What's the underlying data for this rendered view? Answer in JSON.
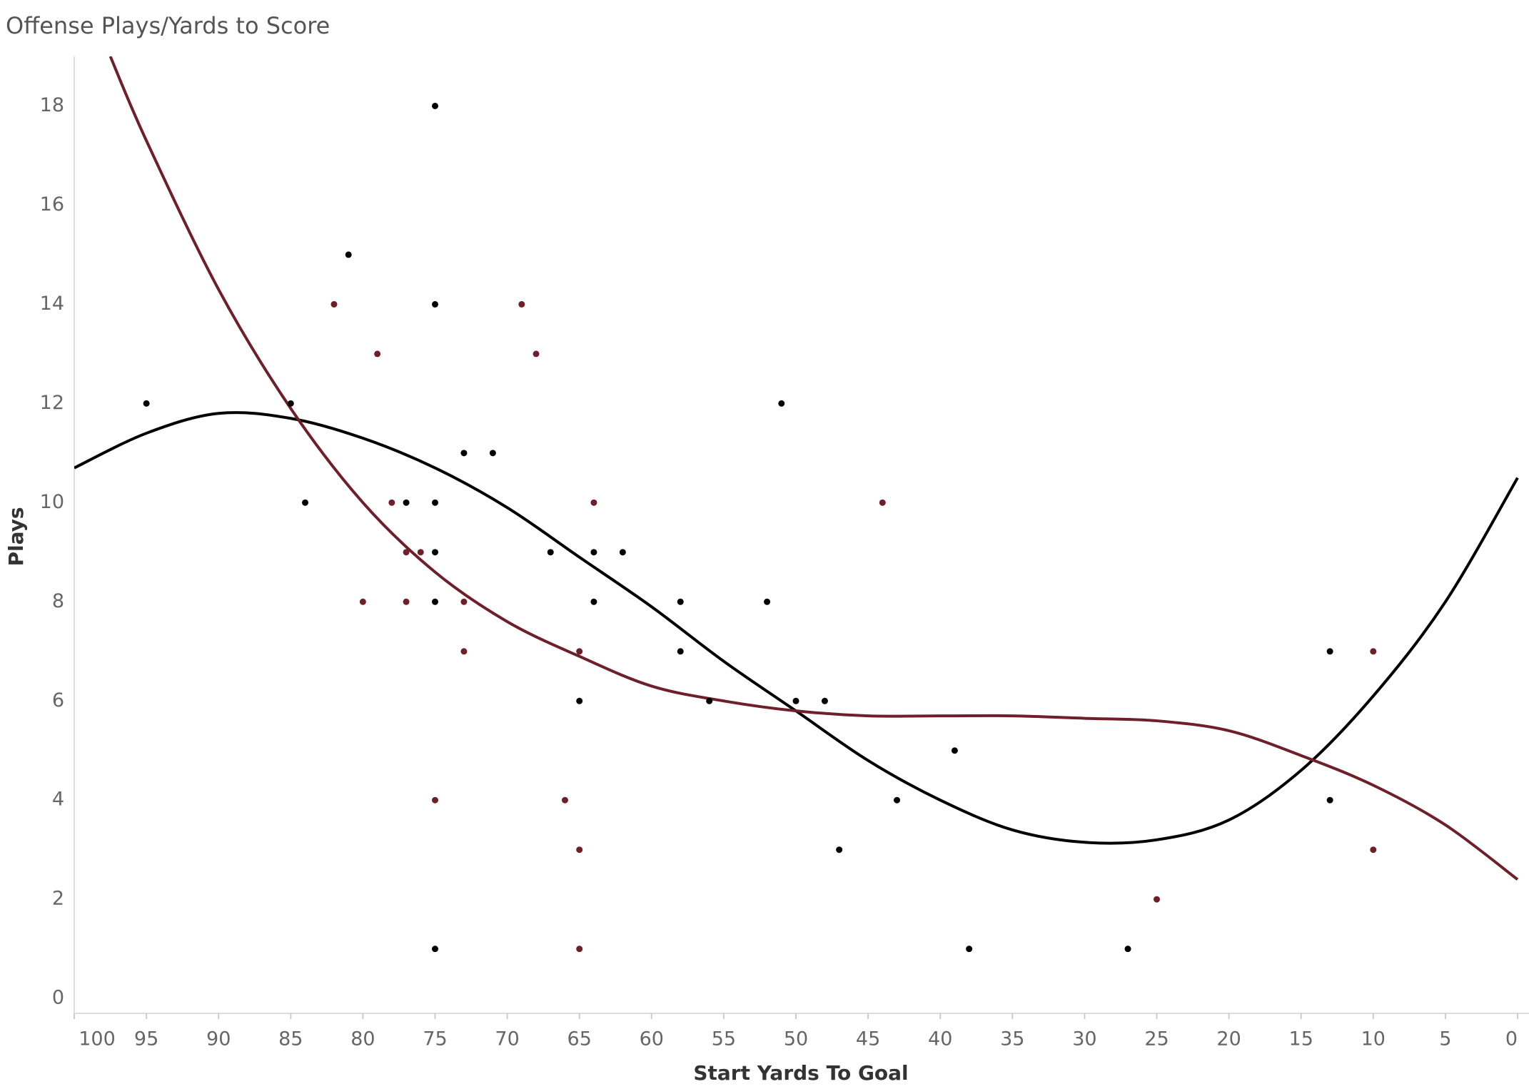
{
  "chart_data": {
    "type": "scatter",
    "title": "Offense Plays/Yards to Score",
    "x_label": "Start Yards To Goal",
    "y_label": "Plays",
    "xlim": [
      100,
      0
    ],
    "ylim": [
      -0.3,
      19
    ],
    "xticks": [
      100,
      95,
      90,
      85,
      80,
      75,
      70,
      65,
      60,
      55,
      50,
      45,
      40,
      35,
      30,
      25,
      20,
      15,
      10,
      5,
      0
    ],
    "yticks": [
      0,
      2,
      4,
      6,
      8,
      10,
      12,
      14,
      16,
      18
    ],
    "grid": false,
    "series": [
      {
        "kind": "points",
        "color": "#000000",
        "x": [
          95,
          85,
          84,
          81,
          77,
          75,
          75,
          75,
          75,
          75,
          75,
          73,
          71,
          67,
          65,
          64,
          64,
          62,
          58,
          58,
          56,
          52,
          51,
          50,
          48,
          47,
          43,
          39,
          38,
          27,
          13,
          13
        ],
        "values": [
          12,
          12,
          10,
          15,
          10,
          18,
          14,
          10,
          9,
          8,
          1,
          11,
          11,
          9,
          6,
          9,
          8,
          9,
          8,
          7,
          6,
          8,
          12,
          6,
          6,
          3,
          4,
          5,
          1,
          1,
          7,
          4
        ]
      },
      {
        "kind": "points",
        "color": "#6e1f2a",
        "x": [
          82,
          79,
          78,
          80,
          77,
          77,
          76,
          75,
          73,
          73,
          69,
          68,
          65,
          65,
          65,
          66,
          64,
          44,
          25,
          10,
          10
        ],
        "values": [
          14,
          13,
          10,
          8,
          9,
          8,
          9,
          4,
          8,
          7,
          14,
          13,
          7,
          3,
          1,
          4,
          10,
          10,
          2,
          7,
          3
        ]
      },
      {
        "kind": "trend",
        "color": "#000000",
        "x": [
          100,
          95,
          90,
          85,
          80,
          75,
          70,
          65,
          60,
          55,
          50,
          45,
          40,
          35,
          30,
          25,
          20,
          15,
          10,
          5,
          0
        ],
        "values": [
          10.7,
          11.4,
          11.8,
          11.7,
          11.3,
          10.7,
          9.9,
          8.9,
          7.9,
          6.8,
          5.8,
          4.8,
          4.0,
          3.4,
          3.15,
          3.2,
          3.6,
          4.6,
          6.1,
          8.0,
          10.5
        ]
      },
      {
        "kind": "trend",
        "color": "#6e1f2a",
        "x": [
          97.5,
          95,
          90,
          85,
          80,
          75,
          70,
          65,
          60,
          55,
          50,
          45,
          40,
          35,
          30,
          25,
          20,
          15,
          10,
          5,
          0
        ],
        "values": [
          19,
          17.3,
          14.3,
          11.9,
          10.0,
          8.6,
          7.6,
          6.9,
          6.3,
          6.0,
          5.8,
          5.7,
          5.7,
          5.7,
          5.65,
          5.6,
          5.4,
          4.9,
          4.3,
          3.5,
          2.4
        ]
      }
    ]
  }
}
